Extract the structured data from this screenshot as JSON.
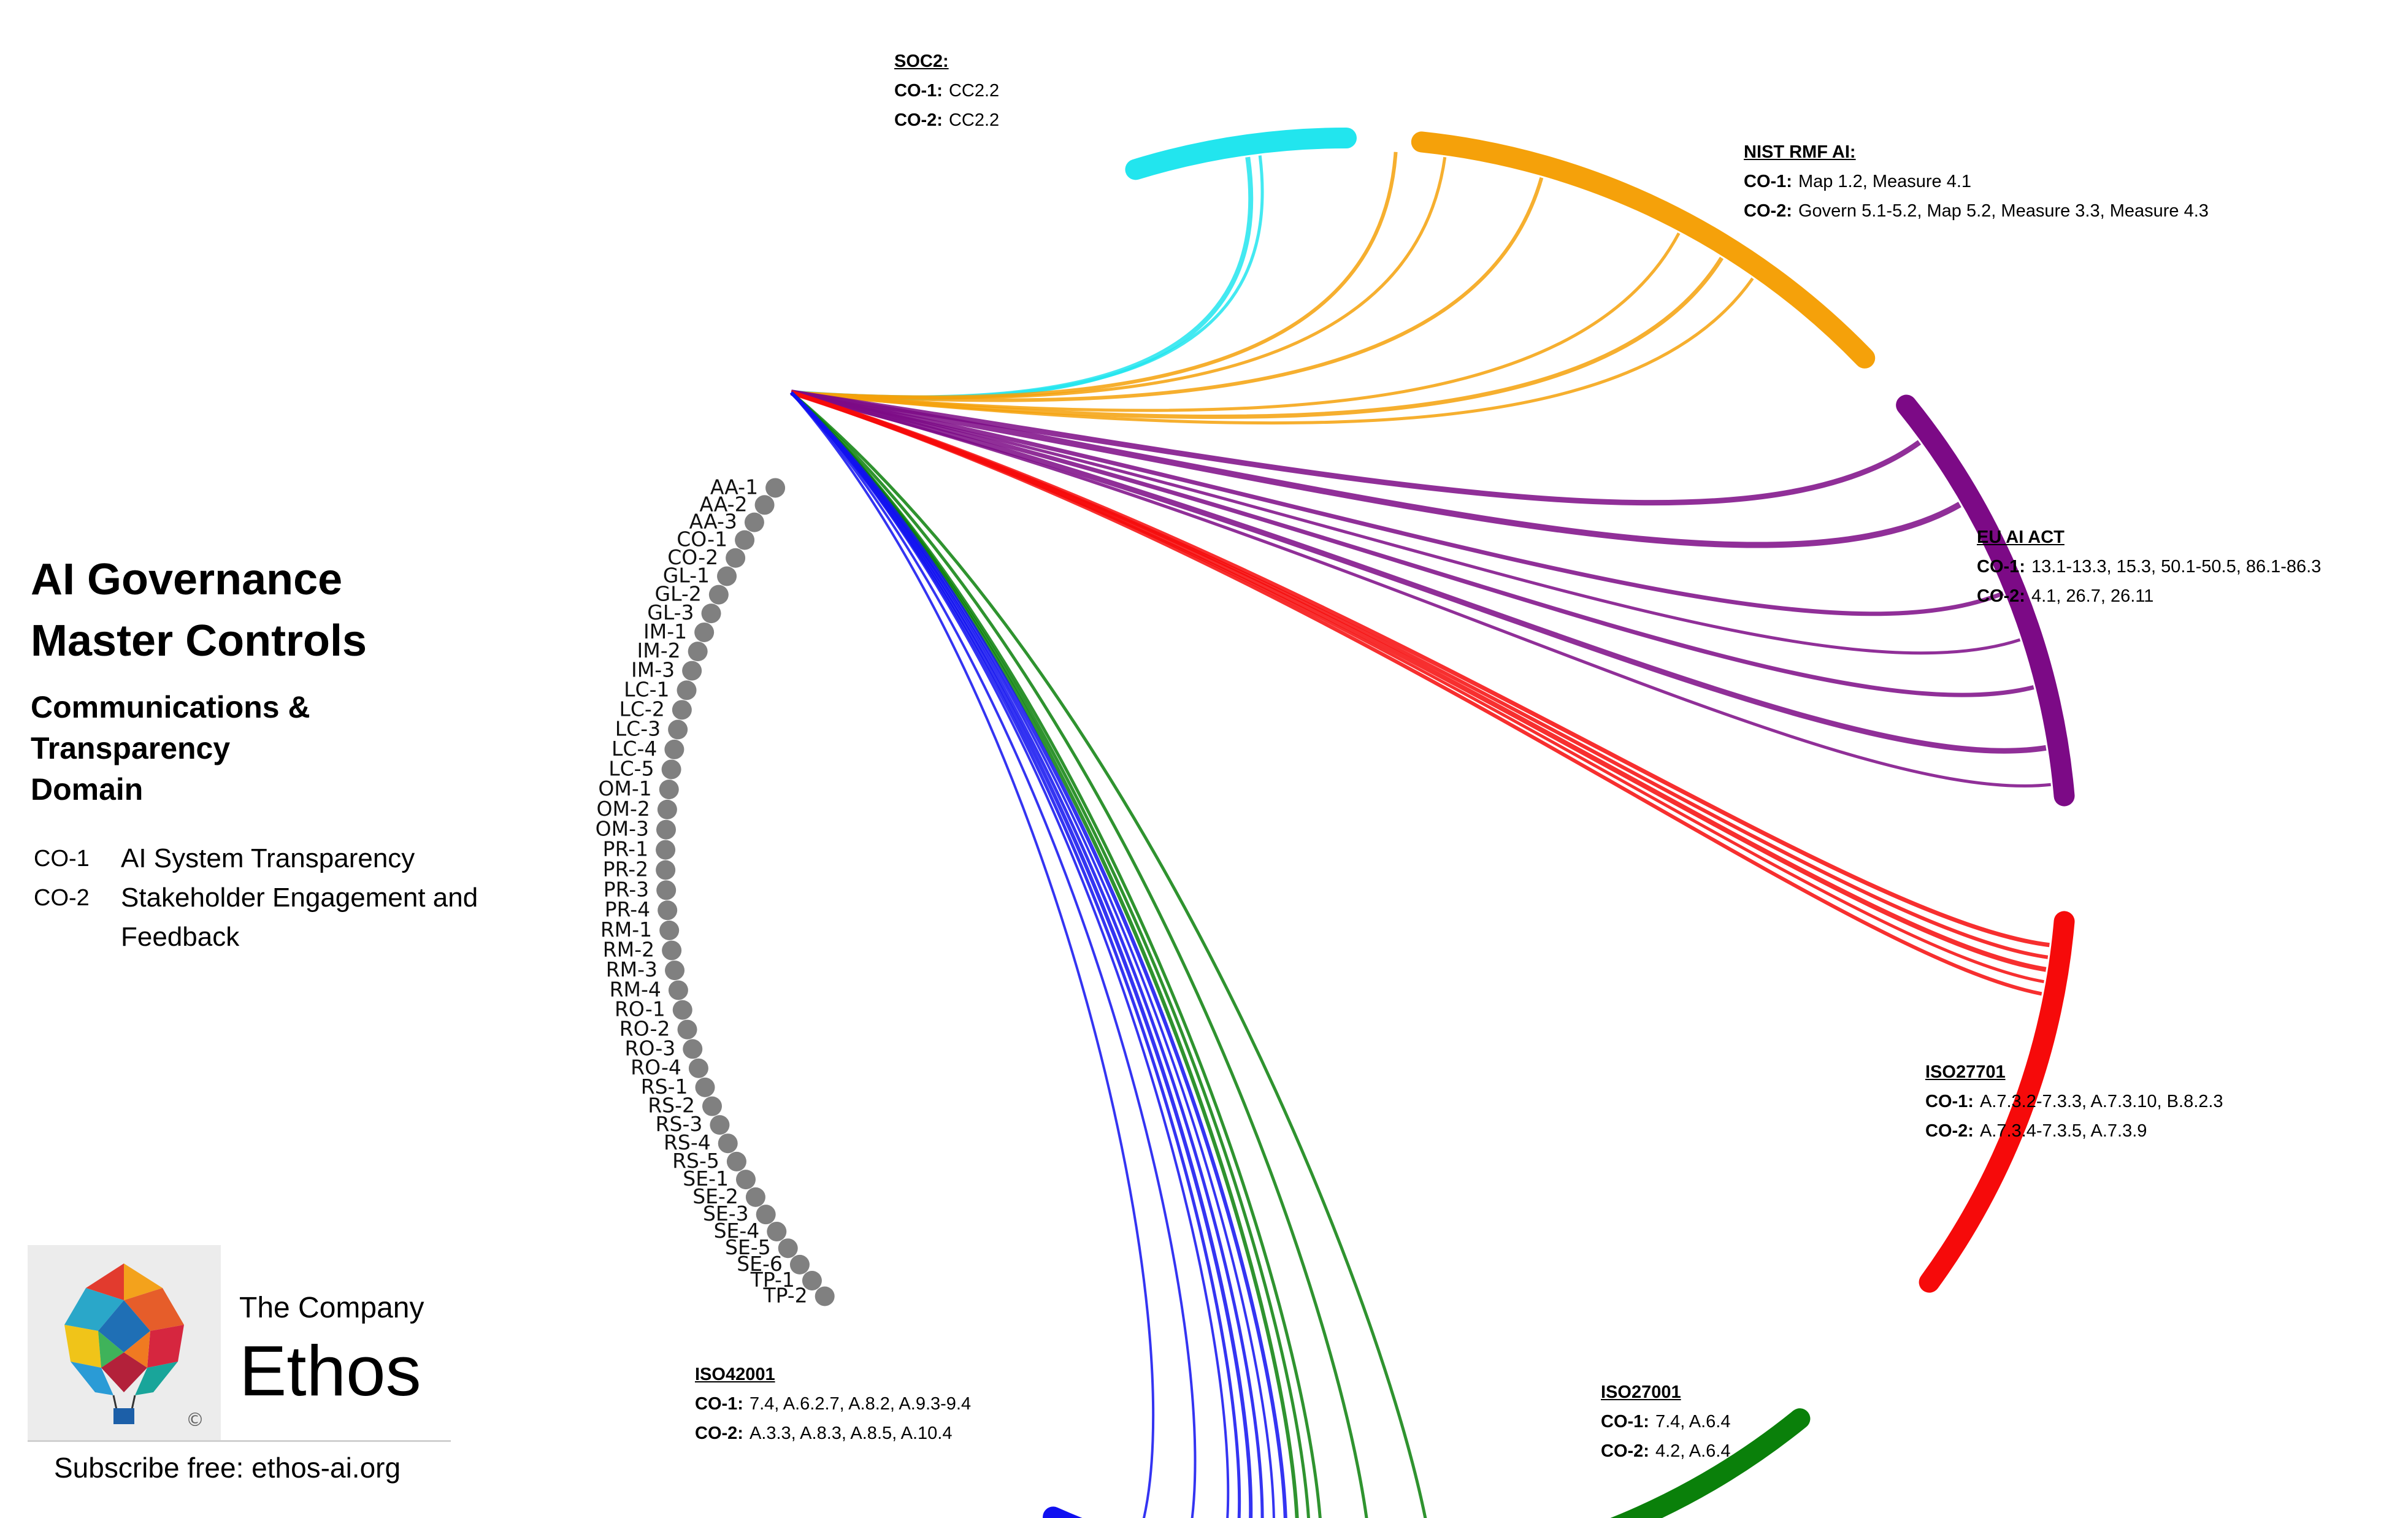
{
  "title": {
    "line1": "AI Governance",
    "line2": "Master Controls"
  },
  "subtitle": {
    "line1": "Communications &",
    "line2": "Transparency",
    "line3": "Domain"
  },
  "legend": [
    {
      "code": "CO-1",
      "text": "AI System Transparency"
    },
    {
      "code": "CO-2",
      "text": "Stakeholder Engagement and Feedback"
    }
  ],
  "branding": {
    "company": "The Company",
    "name": "Ethos",
    "subscribe": "Subscribe free: ethos-ai.org",
    "copyright": "©"
  },
  "nodes": [
    "AA-1",
    "AA-2",
    "AA-3",
    "CO-1",
    "CO-2",
    "GL-1",
    "GL-2",
    "GL-3",
    "IM-1",
    "IM-2",
    "IM-3",
    "LC-1",
    "LC-2",
    "LC-3",
    "LC-4",
    "LC-5",
    "OM-1",
    "OM-2",
    "OM-3",
    "PR-1",
    "PR-2",
    "PR-3",
    "PR-4",
    "RM-1",
    "RM-2",
    "RM-3",
    "RM-4",
    "RO-1",
    "RO-2",
    "RO-3",
    "RO-4",
    "RS-1",
    "RS-2",
    "RS-3",
    "RS-4",
    "RS-5",
    "SE-1",
    "SE-2",
    "SE-3",
    "SE-4",
    "SE-5",
    "SE-6",
    "TP-1",
    "TP-2"
  ],
  "frameworks": [
    {
      "id": "soc2",
      "title": "SOC2:",
      "color": "#22e5ee",
      "rows": [
        {
          "k": "CO-1:",
          "v": "CC2.2"
        },
        {
          "k": "CO-2:",
          "v": "CC2.2"
        }
      ]
    },
    {
      "id": "nist",
      "title": "NIST RMF AI:",
      "color": "#f5a10a",
      "rows": [
        {
          "k": "CO-1:",
          "v": "Map 1.2,  Measure 4.1"
        },
        {
          "k": "CO-2:",
          "v": "Govern 5.1-5.2,  Map 5.2,  Measure 3.3, Measure 4.3"
        }
      ]
    },
    {
      "id": "euai",
      "title": "EU AI ACT",
      "color": "#7c0a86",
      "rows": [
        {
          "k": "CO-1:",
          "v": "13.1-13.3,  15.3,  50.1-50.5,  86.1-86.3"
        },
        {
          "k": "CO-2:",
          "v": "4.1,  26.7,  26.11"
        }
      ]
    },
    {
      "id": "iso27701",
      "title": "ISO27701",
      "color": "#f60a0a",
      "rows": [
        {
          "k": "CO-1:",
          "v": "A.7.3.2-7.3.3, A.7.3.10, B.8.2.3"
        },
        {
          "k": "CO-2:",
          "v": "A.7.3.4-7.3.5, A.7.3.9"
        }
      ]
    },
    {
      "id": "iso27001",
      "title": "ISO27001",
      "color": "#0a800a",
      "rows": [
        {
          "k": "CO-1:",
          "v": "7.4, A.6.4"
        },
        {
          "k": "CO-2:",
          "v": "4.2, A.6.4"
        }
      ]
    },
    {
      "id": "iso42001",
      "title": "ISO42001",
      "color": "#1010f0",
      "rows": [
        {
          "k": "CO-1:",
          "v": "7.4, A.6.2.7, A.8.2, A.9.3-9.4"
        },
        {
          "k": "CO-2:",
          "v": "A.3.3, A.8.3, A.8.5, A.10.4"
        }
      ]
    }
  ],
  "icons": {
    "logo": "hot-air-balloon-icon"
  }
}
